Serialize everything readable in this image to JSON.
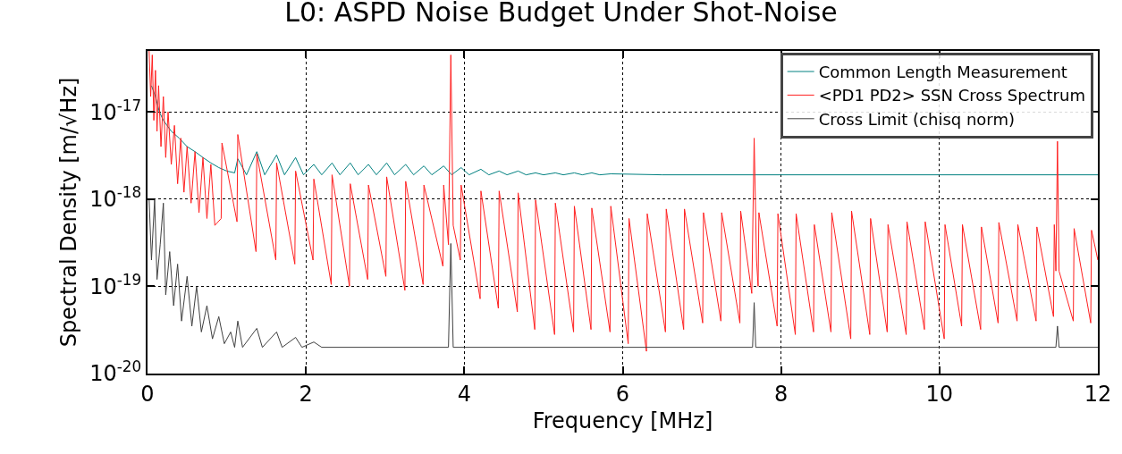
{
  "chart_data": {
    "type": "line",
    "title": "L0: ASPD Noise Budget Under Shot-Noise",
    "xlabel": "Frequency [MHz]",
    "ylabel": "Spectral Density [m/√Hz]",
    "log": "y",
    "grid": true,
    "legend": "top right",
    "line_style": "solid",
    "xlim": [
      0,
      12
    ],
    "xticks": [
      0,
      2,
      4,
      6,
      8,
      10,
      12
    ],
    "ylim": [
      1e-20,
      5e-17
    ],
    "yticks": [
      {
        "value": 1e-20,
        "label": "10$^{-20}$"
      },
      {
        "value": 1e-19,
        "label": "10$^{-19}$"
      },
      {
        "value": 1e-18,
        "label": "10$^{-18}$"
      },
      {
        "value": 1e-17,
        "label": "10$^{-17}$"
      }
    ],
    "series": [
      {
        "name": "Common Length Measurement",
        "color": "#008080",
        "x": [
          0.05,
          0.1,
          0.15,
          0.2,
          0.3,
          0.4,
          0.5,
          0.6,
          0.7,
          0.8,
          0.9,
          1.0,
          1.1,
          1.14,
          1.25,
          1.38,
          1.48,
          1.63,
          1.73,
          1.87,
          1.97,
          2.1,
          2.2,
          2.33,
          2.43,
          2.56,
          2.66,
          2.79,
          2.89,
          3.02,
          3.12,
          3.26,
          3.36,
          3.49,
          3.59,
          3.74,
          3.84,
          3.96,
          4.06,
          4.21,
          4.31,
          4.44,
          4.54,
          4.68,
          4.78,
          4.9,
          5.0,
          5.15,
          5.25,
          5.39,
          5.49,
          5.61,
          5.71,
          5.85,
          6.5,
          8.0,
          10.0,
          12.0
        ],
        "values": [
          2e-17,
          1.5e-17,
          1e-17,
          8e-18,
          6e-18,
          5e-18,
          4e-18,
          3.5e-18,
          3e-18,
          2.6e-18,
          2.3e-18,
          2.1e-18,
          2e-18,
          2.9e-18,
          1.9e-18,
          3.5e-18,
          1.9e-18,
          3.2e-18,
          1.9e-18,
          3e-18,
          1.9e-18,
          2.5e-18,
          1.9e-18,
          2.6e-18,
          1.9e-18,
          2.6e-18,
          1.9e-18,
          2.5e-18,
          1.9e-18,
          2.6e-18,
          1.9e-18,
          2.5e-18,
          1.9e-18,
          2.4e-18,
          1.9e-18,
          2.4e-18,
          1.9e-18,
          2.3e-18,
          1.9e-18,
          2.2e-18,
          1.9e-18,
          2.1e-18,
          1.9e-18,
          2.1e-18,
          1.9e-18,
          2e-18,
          1.9e-18,
          2e-18,
          1.9e-18,
          2e-18,
          1.9e-18,
          2e-18,
          1.9e-18,
          1.95e-18,
          1.9e-18,
          1.9e-18,
          1.9e-18,
          1.9e-18
        ]
      },
      {
        "name": "<PD1 PD2> SSN Cross Spectrum",
        "color": "#ff2020",
        "x": [
          0.02,
          0.04,
          0.06,
          0.08,
          0.1,
          0.12,
          0.14,
          0.17,
          0.2,
          0.23,
          0.26,
          0.3,
          0.34,
          0.38,
          0.42,
          0.46,
          0.5,
          0.55,
          0.6,
          0.65,
          0.7,
          0.75,
          0.8,
          0.85,
          0.93,
          0.94,
          1.13,
          1.14,
          1.37,
          1.38,
          1.62,
          1.63,
          1.86,
          1.87,
          2.09,
          2.1,
          2.32,
          2.33,
          2.55,
          2.56,
          2.78,
          2.79,
          3.01,
          3.02,
          3.25,
          3.26,
          3.48,
          3.49,
          3.73,
          3.74,
          3.8,
          3.83,
          3.86,
          3.95,
          3.96,
          4.2,
          4.21,
          4.43,
          4.44,
          4.67,
          4.68,
          4.89,
          4.9,
          5.14,
          5.15,
          5.38,
          5.39,
          5.6,
          5.61,
          5.84,
          5.85,
          6.07,
          6.08,
          6.3,
          6.31,
          6.54,
          6.55,
          6.77,
          6.78,
          7.01,
          7.02,
          7.24,
          7.25,
          7.48,
          7.49,
          7.63,
          7.66,
          7.69,
          7.71,
          7.72,
          7.95,
          7.96,
          8.18,
          8.19,
          8.41,
          8.42,
          8.63,
          8.64,
          8.88,
          8.89,
          9.12,
          9.13,
          9.34,
          9.35,
          9.58,
          9.59,
          9.81,
          9.82,
          10.06,
          10.07,
          10.28,
          10.29,
          10.52,
          10.53,
          10.74,
          10.75,
          10.98,
          10.99,
          11.22,
          11.23,
          11.44,
          11.45,
          11.47,
          11.49,
          11.51,
          11.69,
          11.7,
          11.91,
          11.92,
          12.0
        ],
        "values": [
          5e-17,
          1.5e-17,
          4.5e-17,
          8e-18,
          3e-17,
          6e-18,
          2e-17,
          4e-18,
          1.5e-17,
          3e-18,
          1e-17,
          2.5e-18,
          7e-18,
          1.5e-18,
          5e-18,
          1.2e-18,
          4e-18,
          9e-19,
          3.5e-18,
          7e-19,
          3e-18,
          6e-19,
          2.5e-18,
          5e-19,
          6e-19,
          4.4e-18,
          5.5e-19,
          5.5e-18,
          2.5e-19,
          3.3e-18,
          2e-19,
          2.6e-18,
          1.8e-19,
          2.1e-18,
          2e-19,
          1.7e-18,
          1.05e-19,
          1.9e-18,
          1e-19,
          1.5e-18,
          1.2e-19,
          1.45e-18,
          1.3e-19,
          1.8e-18,
          9e-20,
          1.6e-18,
          1.05e-19,
          1.45e-18,
          1.7e-19,
          1.45e-18,
          3e-19,
          4.5e-17,
          5e-19,
          2e-19,
          1.45e-18,
          7.2e-20,
          1.24e-18,
          5.6e-20,
          1.24e-18,
          5.1e-20,
          1.18e-18,
          3.2e-20,
          9.8e-19,
          2.8e-20,
          9e-19,
          3e-20,
          8.3e-19,
          3.2e-20,
          7.9e-19,
          3e-20,
          8.3e-19,
          2.2e-20,
          6e-19,
          1.8e-20,
          6.8e-19,
          3e-20,
          7.7e-19,
          3.2e-20,
          7.7e-19,
          3.8e-20,
          7e-19,
          4e-20,
          7e-19,
          3.8e-20,
          7.3e-19,
          8.3e-20,
          5e-18,
          2e-19,
          1e-19,
          7e-19,
          3.5e-20,
          6.8e-19,
          2.8e-20,
          6.8e-19,
          3e-20,
          5.1e-19,
          3e-20,
          7e-19,
          2.5e-20,
          7.3e-19,
          2.8e-20,
          6e-19,
          3e-20,
          5.1e-19,
          2.8e-20,
          5.5e-19,
          3.2e-20,
          5.5e-19,
          2.5e-20,
          5.1e-19,
          3.5e-20,
          5.1e-19,
          3.2e-20,
          4.8e-19,
          3.8e-20,
          5.4e-19,
          4e-20,
          5.1e-19,
          4e-20,
          4.8e-19,
          4.5e-20,
          5.1e-19,
          1.5e-19,
          4.6e-18,
          1.5e-19,
          4e-20,
          4.6e-19,
          3.8e-20,
          4.4e-19,
          2e-19
        ]
      },
      {
        "name": "Cross Limit (chisq norm)",
        "color": "#404040",
        "x": [
          0.02,
          0.05,
          0.09,
          0.12,
          0.16,
          0.2,
          0.23,
          0.28,
          0.33,
          0.38,
          0.43,
          0.5,
          0.56,
          0.62,
          0.68,
          0.75,
          0.82,
          0.9,
          0.97,
          1.05,
          1.1,
          1.14,
          1.2,
          1.38,
          1.45,
          1.63,
          1.7,
          1.87,
          1.95,
          2.1,
          2.2,
          3.8,
          3.83,
          3.86,
          7.64,
          7.66,
          7.68,
          11.47,
          11.49,
          11.51,
          12.0
        ],
        "values": [
          1e-18,
          2e-19,
          1e-18,
          1.2e-19,
          3e-19,
          9e-19,
          8e-20,
          2.5e-19,
          6e-20,
          1.8e-19,
          4e-20,
          1.3e-19,
          3.5e-20,
          1e-19,
          3e-20,
          6e-20,
          2.5e-20,
          4.5e-20,
          2.2e-20,
          3e-20,
          2e-20,
          4e-20,
          2e-20,
          3.3e-20,
          2e-20,
          3e-20,
          2e-20,
          2.6e-20,
          2e-20,
          2.3e-20,
          2e-20,
          2e-20,
          3.1e-19,
          2e-20,
          2e-20,
          6.5e-20,
          2e-20,
          2e-20,
          3.5e-20,
          2e-20,
          2e-20
        ]
      }
    ]
  }
}
